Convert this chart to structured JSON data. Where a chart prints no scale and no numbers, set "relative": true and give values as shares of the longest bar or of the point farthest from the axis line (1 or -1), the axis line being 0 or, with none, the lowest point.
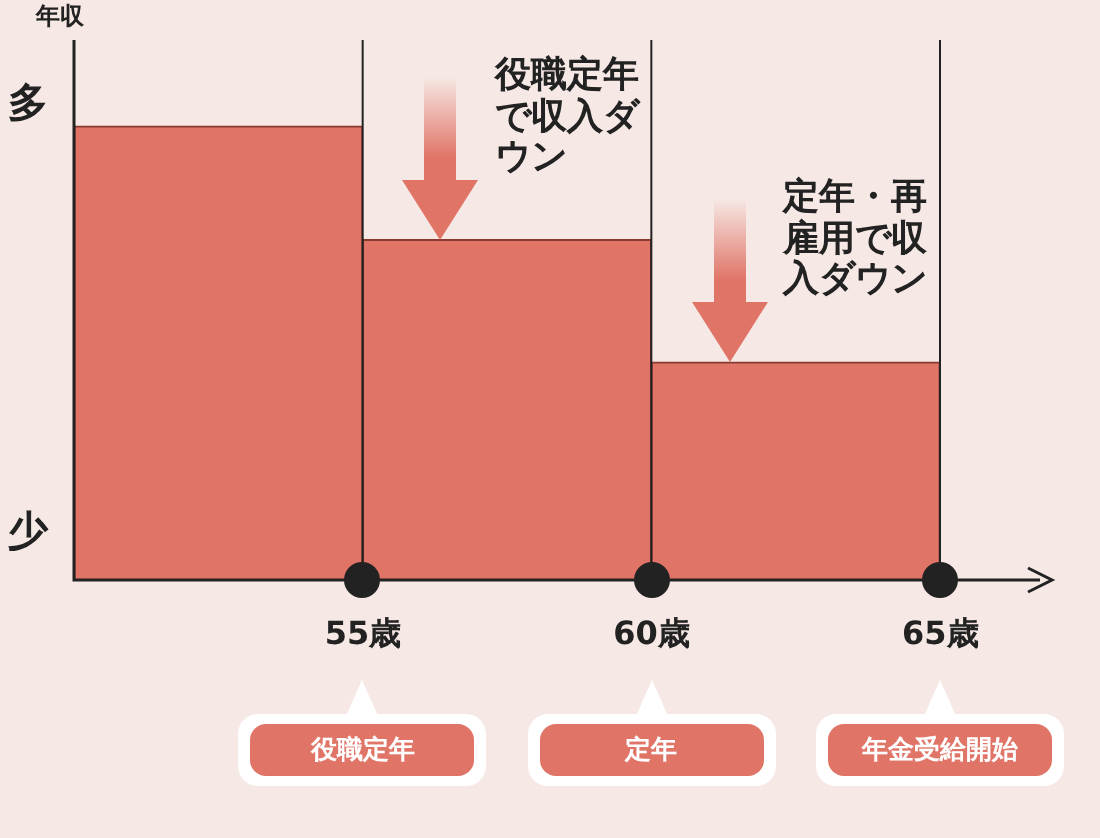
{
  "chart_data": {
    "type": "bar",
    "relative": true,
    "ylabel": "年収",
    "categories": [
      null,
      null,
      null
    ],
    "values": [
      1,
      0.75,
      0.48
    ],
    "color": "#e07467",
    "legend": false,
    "annotations": [
      "多",
      "少",
      "55歳",
      "60歳",
      "65歳",
      "役職定年で収入ダウン",
      "定年・再雇用で収入ダウン",
      "役職定年",
      "定年",
      "年金受給開始"
    ]
  }
}
